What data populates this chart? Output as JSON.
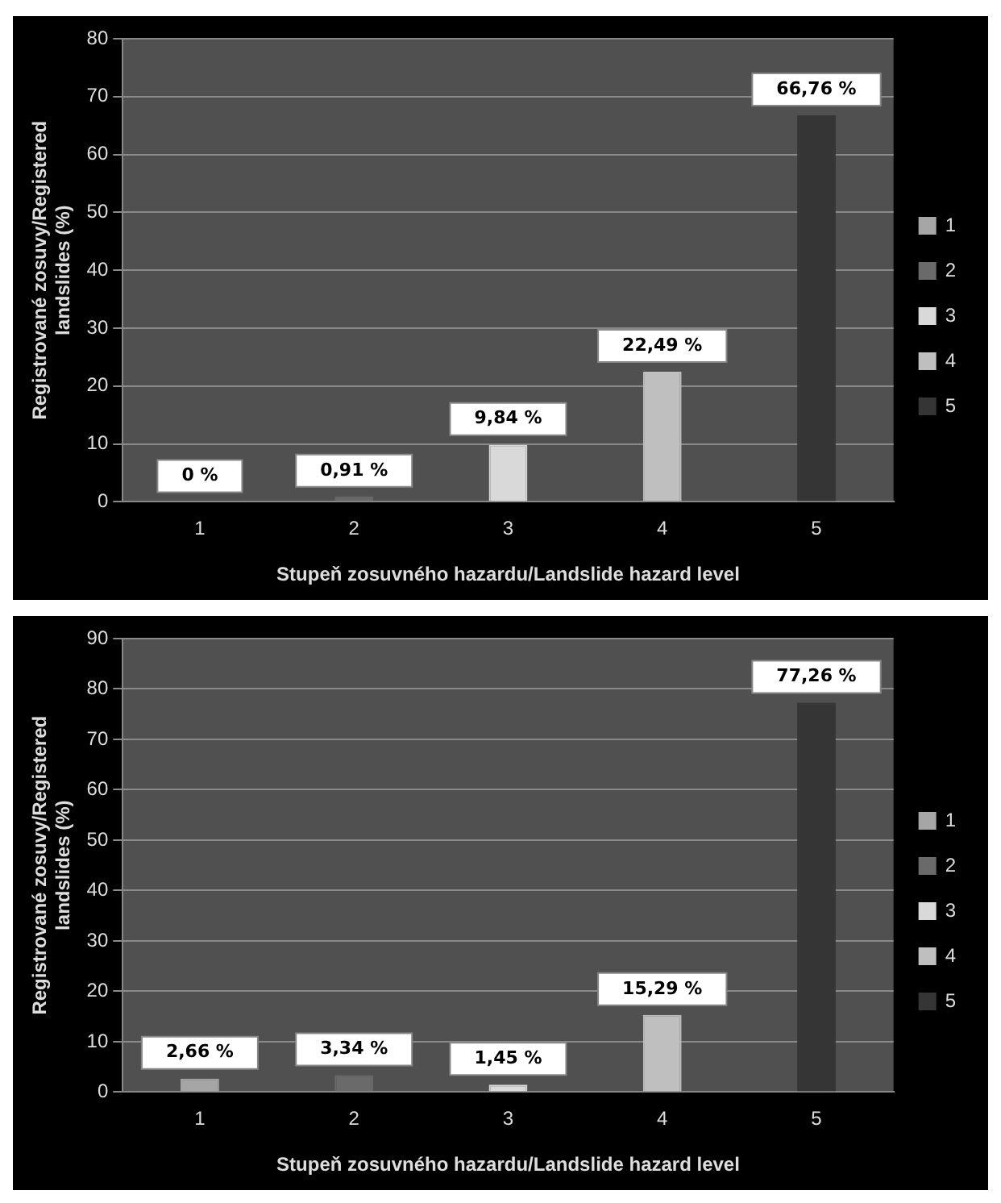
{
  "chart_data": [
    {
      "type": "bar",
      "xlabel": "Stupeň zosuvného hazardu/Landslide hazard level",
      "ylabel": "Registrované zosuvy/Registered landslides (%)",
      "categories": [
        "1",
        "2",
        "3",
        "4",
        "5"
      ],
      "series": [
        {
          "name": "1",
          "color": "#a6a6a6",
          "values": [
            0,
            null,
            null,
            null,
            null
          ],
          "value_labels": [
            "0 %",
            null,
            null,
            null,
            null
          ]
        },
        {
          "name": "2",
          "color": "#6a6a6a",
          "values": [
            null,
            0.91,
            null,
            null,
            null
          ],
          "value_labels": [
            null,
            "0,91 %",
            null,
            null,
            null
          ]
        },
        {
          "name": "3",
          "color": "#d9d9d9",
          "values": [
            null,
            null,
            9.84,
            null,
            null
          ],
          "value_labels": [
            null,
            null,
            "9,84 %",
            null,
            null
          ]
        },
        {
          "name": "4",
          "color": "#bfbfbf",
          "values": [
            null,
            null,
            null,
            22.49,
            null
          ],
          "value_labels": [
            null,
            null,
            null,
            "22,49 %",
            null
          ]
        },
        {
          "name": "5",
          "color": "#353535",
          "values": [
            null,
            null,
            null,
            null,
            66.76
          ],
          "value_labels": [
            null,
            null,
            null,
            null,
            "66,76 %"
          ]
        }
      ],
      "ylim": [
        0,
        80
      ],
      "yticks": [
        0,
        10,
        20,
        30,
        40,
        50,
        60,
        70,
        80
      ],
      "grid": "y",
      "legend": "right"
    },
    {
      "type": "bar",
      "xlabel": "Stupeň zosuvného hazardu/Landslide hazard level",
      "ylabel": "Registrované zosuvy/Registered landslides (%)",
      "categories": [
        "1",
        "2",
        "3",
        "4",
        "5"
      ],
      "series": [
        {
          "name": "1",
          "color": "#a6a6a6",
          "values": [
            2.66,
            null,
            null,
            null,
            null
          ],
          "value_labels": [
            "2,66 %",
            null,
            null,
            null,
            null
          ]
        },
        {
          "name": "2",
          "color": "#6a6a6a",
          "values": [
            null,
            3.34,
            null,
            null,
            null
          ],
          "value_labels": [
            null,
            "3,34 %",
            null,
            null,
            null
          ]
        },
        {
          "name": "3",
          "color": "#d9d9d9",
          "values": [
            null,
            null,
            1.45,
            null,
            null
          ],
          "value_labels": [
            null,
            null,
            "1,45 %",
            null,
            null
          ]
        },
        {
          "name": "4",
          "color": "#bfbfbf",
          "values": [
            null,
            null,
            null,
            15.29,
            null
          ],
          "value_labels": [
            null,
            null,
            null,
            "15,29 %",
            null
          ]
        },
        {
          "name": "5",
          "color": "#353535",
          "values": [
            null,
            null,
            null,
            null,
            77.26
          ],
          "value_labels": [
            null,
            null,
            null,
            null,
            "77,26 %"
          ]
        }
      ],
      "ylim": [
        0,
        90
      ],
      "yticks": [
        0,
        10,
        20,
        30,
        40,
        50,
        60,
        70,
        80,
        90
      ],
      "grid": "y",
      "legend": "right"
    }
  ]
}
